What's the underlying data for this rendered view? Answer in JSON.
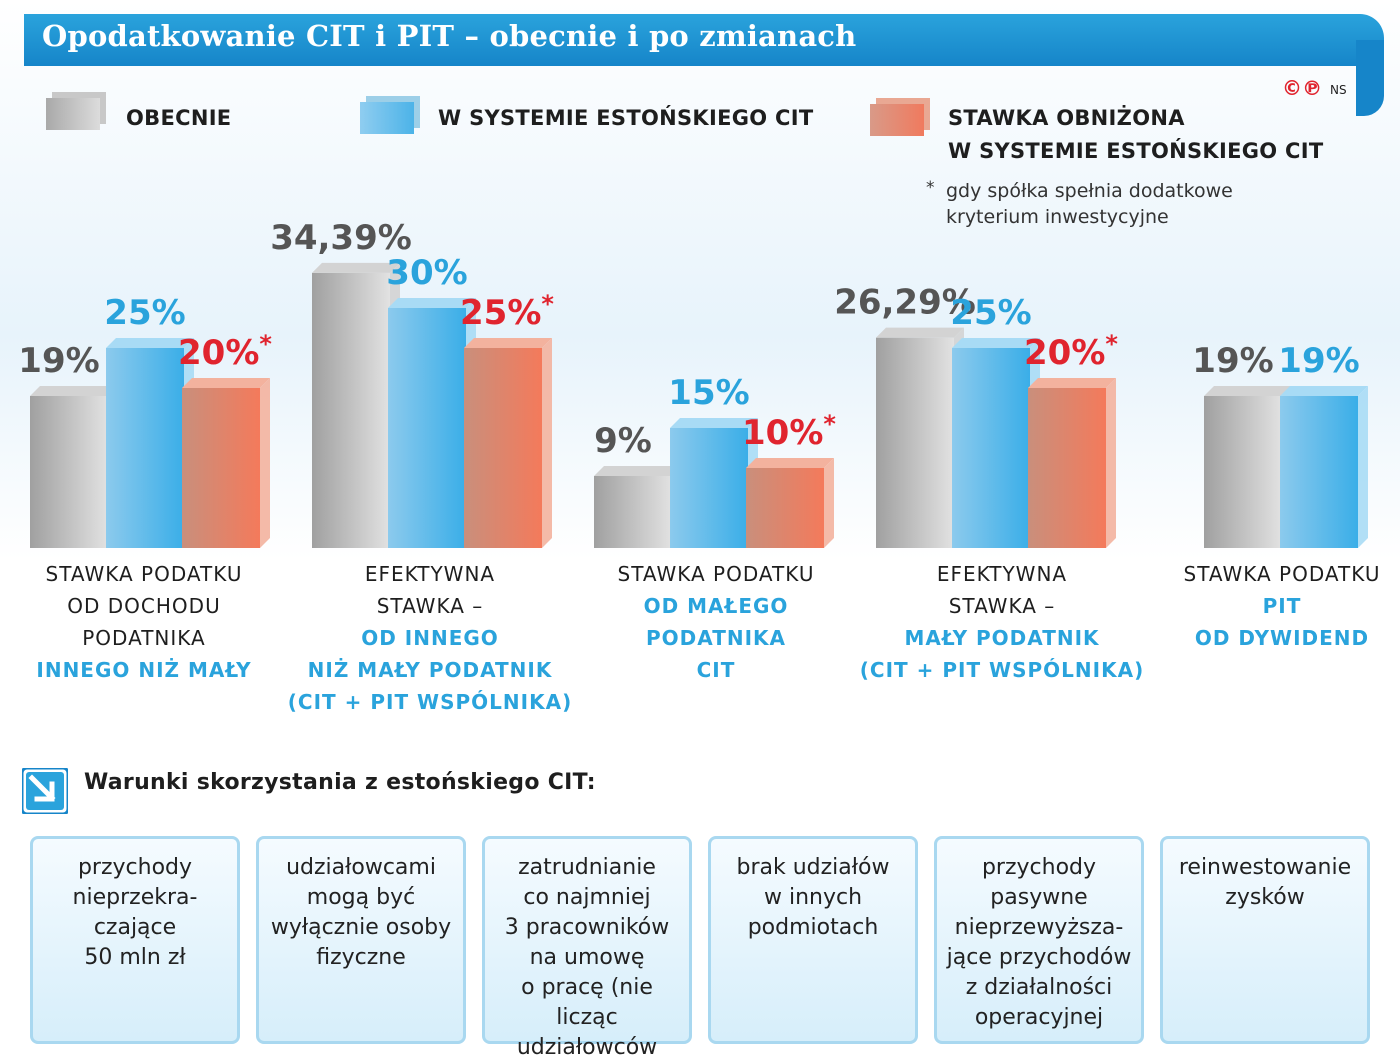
{
  "header": {
    "title": "Opodatkowanie CIT i PIT – obecnie i po zmianach"
  },
  "credit": {
    "copyright": "©℗",
    "author": "NS"
  },
  "legend": {
    "items": [
      {
        "label": "OBECNIE",
        "color": "#b8b8b8"
      },
      {
        "label": "W SYSTEMIE ESTOŃSKIEGO CIT",
        "color": "#4cb3e8"
      },
      {
        "label_line1": "STAWKA OBNIŻONA",
        "label_line2": "W SYSTEMIE ESTOŃSKIEGO CIT",
        "color": "#f07a5e"
      }
    ],
    "note_mark": "*",
    "note_line1": "gdy spółka spełnia dodatkowe",
    "note_line2": "kryterium inwestycyjne"
  },
  "chart_data": {
    "type": "bar",
    "title": "Opodatkowanie CIT i PIT – obecnie i po zmianach",
    "unit": "%",
    "ylim": [
      0,
      40
    ],
    "series": [
      {
        "name": "OBECNIE",
        "color": "#b8b8b8",
        "label_color": "#555555",
        "values": [
          19,
          34.39,
          9,
          26.29,
          19
        ]
      },
      {
        "name": "W SYSTEMIE ESTOŃSKIEGO CIT",
        "color": "#4cb3e8",
        "label_color": "#2aa3dc",
        "values": [
          25,
          30,
          15,
          25,
          19
        ]
      },
      {
        "name": "STAWKA OBNIŻONA W SYSTEMIE ESTOŃSKIEGO CIT",
        "color": "#f07a5e",
        "label_color": "#e0242e",
        "values": [
          20,
          25,
          10,
          20,
          null
        ]
      }
    ],
    "value_labels": [
      [
        "19%",
        "25%",
        "20%*"
      ],
      [
        "34,39%",
        "30%",
        "25%*"
      ],
      [
        "9%",
        "15%",
        "10%*"
      ],
      [
        "26,29%",
        "25%",
        "20%*"
      ],
      [
        "19%",
        "19%",
        null
      ]
    ],
    "categories": [
      {
        "lines": [
          {
            "t": "STAWKA PODATKU",
            "c": "blk"
          },
          {
            "t": "OD DOCHODU",
            "c": "blk"
          },
          {
            "t": "PODATNIKA",
            "c": "blk"
          },
          {
            "t": "INNEGO NIŻ MAŁY",
            "c": "blu"
          }
        ]
      },
      {
        "lines": [
          {
            "t": "EFEKTYWNA",
            "c": "blk"
          },
          {
            "t": "STAWKA –",
            "c": "blk"
          },
          {
            "t": "OD INNEGO",
            "c": "blu"
          },
          {
            "t": "NIŻ MAŁY PODATNIK",
            "c": "blu"
          },
          {
            "t": "(CIT + PIT WSPÓLNIKA)",
            "c": "blu"
          }
        ]
      },
      {
        "lines": [
          {
            "t": "STAWKA PODATKU",
            "c": "blk"
          },
          {
            "t": "OD MAŁEGO",
            "c": "blu"
          },
          {
            "t": "PODATNIKA",
            "c": "blu"
          },
          {
            "t": "CIT",
            "c": "blu"
          }
        ]
      },
      {
        "lines": [
          {
            "t": "EFEKTYWNA",
            "c": "blk"
          },
          {
            "t": "STAWKA –",
            "c": "blk"
          },
          {
            "t": "MAŁY PODATNIK",
            "c": "blu"
          },
          {
            "t": "(CIT + PIT WSPÓLNIKA)",
            "c": "blu"
          }
        ]
      },
      {
        "lines": [
          {
            "t": "STAWKA PODATKU",
            "c": "blk"
          },
          {
            "t": "PIT",
            "c": "blu"
          },
          {
            "t": "OD DYWIDEND",
            "c": "blu"
          }
        ]
      }
    ]
  },
  "conditions": {
    "title": "Warunki skorzystania z estońskiego CIT:",
    "items": [
      "przychody\nnieprzekra-\nczające\n50 mln zł",
      "udziałowcami\nmogą być\nwyłącznie osoby\nfizyczne",
      "zatrudnianie\nco najmniej\n3 pracowników\nna umowę\no pracę (nie licząc\nudziałowców",
      "brak udziałów\nw innych\npodmiotach",
      "przychody\npasywne\nnieprzewyższa-\njące przychodów\nz działalności\noperacyjnej",
      "reinwestowanie\nzysków"
    ]
  }
}
